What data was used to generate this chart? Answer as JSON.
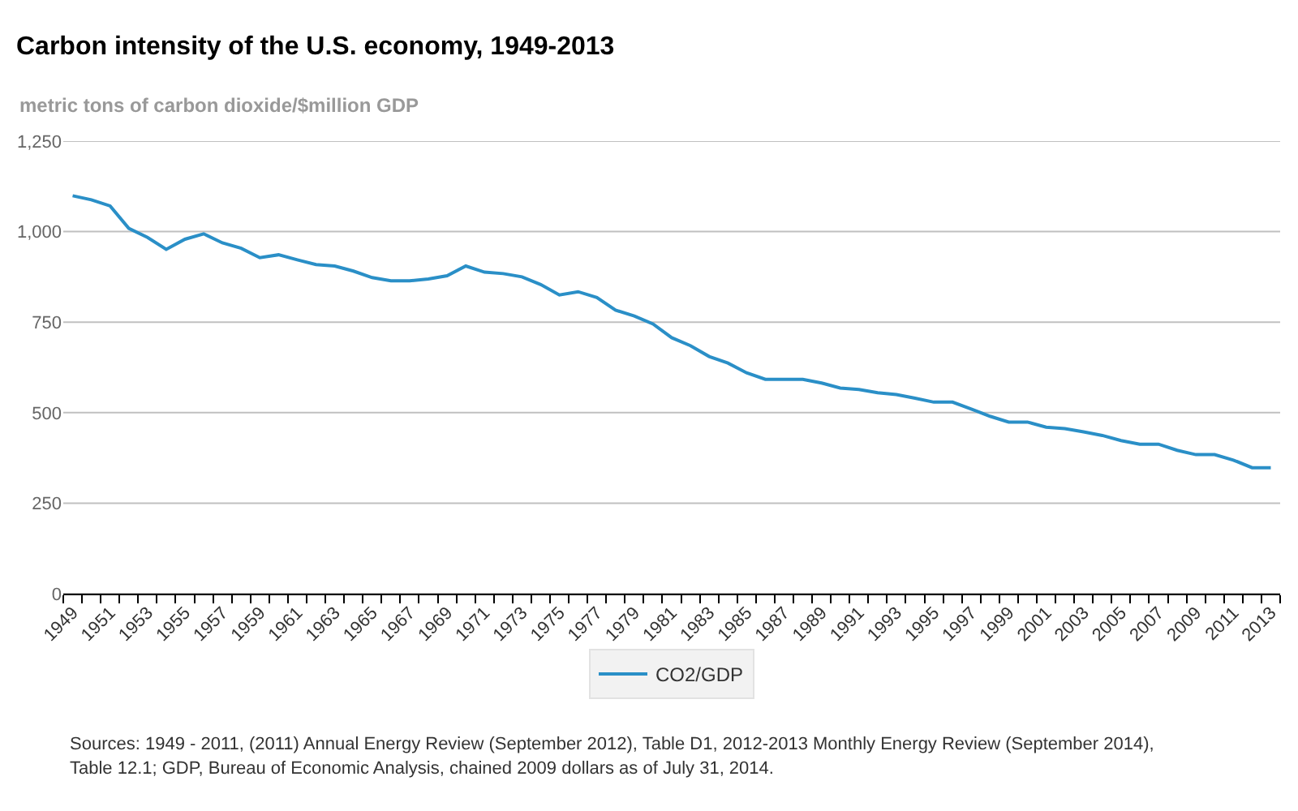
{
  "chart_data": {
    "type": "line",
    "title": "Carbon intensity of the U.S. economy, 1949-2013",
    "ylabel": "metric tons of carbon dioxide/$million GDP",
    "categories": [
      "1949",
      null,
      "1951",
      null,
      "1953",
      null,
      "1955",
      null,
      "1957",
      null,
      "1959",
      null,
      "1961",
      null,
      "1963",
      null,
      "1965",
      null,
      "1967",
      null,
      "1969",
      null,
      "1971",
      null,
      "1973",
      null,
      "1975",
      null,
      "1977",
      null,
      "1979",
      null,
      "1981",
      null,
      "1983",
      null,
      "1985",
      null,
      "1987",
      null,
      "1989",
      null,
      "1991",
      null,
      "1993",
      null,
      "1995",
      null,
      "1997",
      null,
      "1999",
      null,
      "2001",
      null,
      "2003",
      null,
      "2005",
      null,
      "2007",
      null,
      "2009",
      null,
      "2011",
      null,
      "2013"
    ],
    "series": [
      {
        "name": "CO2/GDP",
        "color": "#2a8fc7",
        "values": [
          1099,
          1088,
          1071,
          1009,
          984,
          951,
          979,
          994,
          969,
          954,
          928,
          936,
          922,
          909,
          905,
          891,
          873,
          864,
          864,
          869,
          878,
          905,
          888,
          884,
          875,
          854,
          825,
          834,
          818,
          783,
          767,
          745,
          707,
          685,
          655,
          637,
          610,
          592,
          592,
          592,
          582,
          568,
          564,
          555,
          550,
          540,
          529,
          529,
          510,
          490,
          474,
          474,
          460,
          456,
          447,
          437,
          423,
          413,
          413,
          396,
          384,
          384,
          369,
          348,
          348
        ]
      }
    ],
    "ylim": [
      0,
      1250
    ],
    "yticks": [
      0,
      250,
      500,
      750,
      {
        "value": 1000,
        "label": "1,000"
      },
      {
        "value": 1250,
        "label": "1,250"
      }
    ],
    "grid": "y",
    "legend": "bottom",
    "annotations": [
      "Sources: 1949 - 2011, (2011) Annual Energy Review (September 2012), Table D1, 2012-2013 Monthly Energy Review (September 2014), Table 12.1; GDP, Bureau of Economic Analysis, chained 2009 dollars as of July 31, 2014."
    ]
  }
}
